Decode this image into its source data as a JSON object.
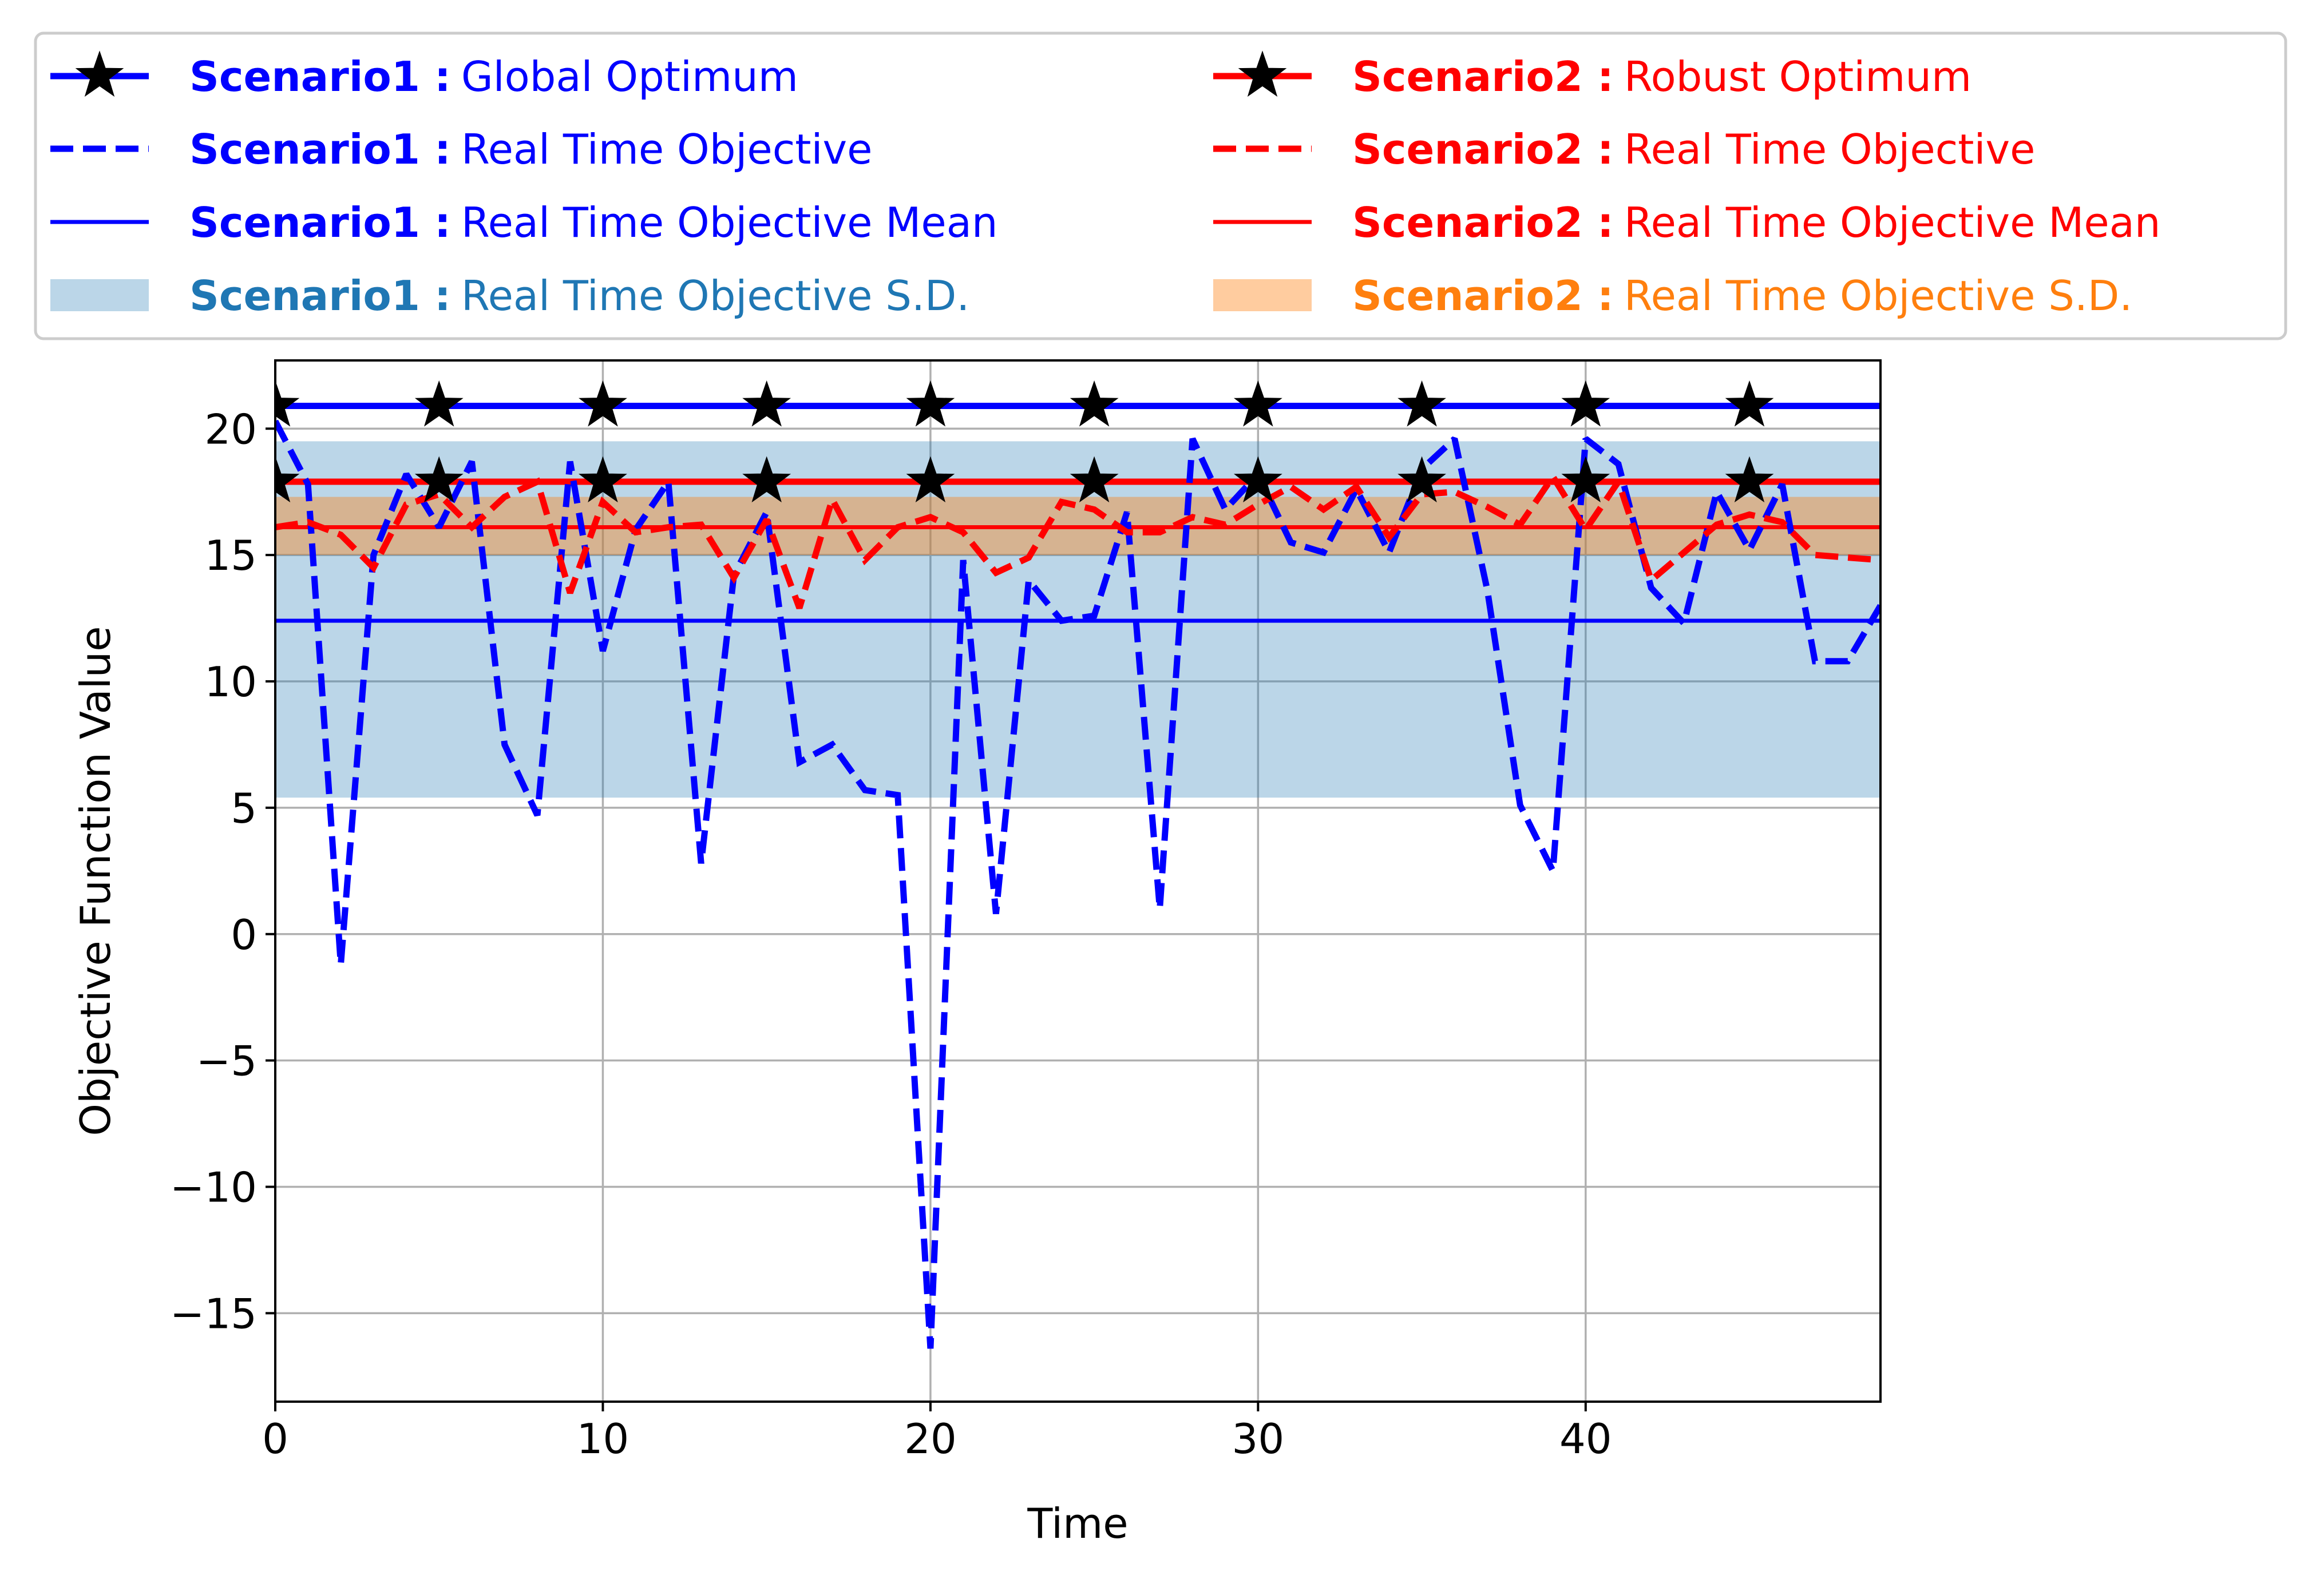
{
  "chart_data": {
    "type": "line",
    "title": "",
    "xlabel": "Time",
    "ylabel": "Objective Function Value",
    "xlim": [
      0,
      49
    ],
    "ylim": [
      -18.5,
      22.7
    ],
    "xticks": [
      0,
      10,
      20,
      30,
      40
    ],
    "yticks": [
      -15,
      -10,
      -5,
      0,
      5,
      10,
      15,
      20
    ],
    "xtick_labels": [
      "0",
      "10",
      "20",
      "30",
      "40"
    ],
    "ytick_labels": [
      "−15",
      "−10",
      "−5",
      "0",
      "5",
      "10",
      "15",
      "20"
    ],
    "grid": true,
    "legend_position": "top",
    "series": [
      {
        "key": "s1_global",
        "prefix": "Scenario1 :",
        "name": "Global Optimum",
        "color": "#0000ff",
        "style": "solid-star",
        "values": [
          20.9,
          20.9
        ],
        "x": [
          0,
          49
        ],
        "markers_x": [
          0,
          5,
          10,
          15,
          20,
          25,
          30,
          35,
          40,
          45
        ]
      },
      {
        "key": "s1_rt",
        "prefix": "Scenario1 :",
        "name": "Real Time Objective",
        "color": "#0000ff",
        "style": "dashed",
        "x": [
          0,
          1,
          2,
          3,
          4,
          5,
          6,
          7,
          8,
          9,
          10,
          11,
          12,
          13,
          14,
          15,
          16,
          17,
          18,
          19,
          20,
          21,
          22,
          23,
          24,
          25,
          26,
          27,
          28,
          29,
          30,
          31,
          32,
          33,
          34,
          35,
          36,
          37,
          38,
          39,
          40,
          41,
          42,
          43,
          44,
          45,
          46,
          47,
          48,
          49
        ],
        "values": [
          20.3,
          17.8,
          -1.2,
          15.0,
          18.2,
          16.1,
          18.7,
          7.5,
          4.7,
          18.7,
          11.2,
          16.0,
          17.9,
          2.8,
          14.2,
          16.7,
          6.8,
          7.5,
          5.7,
          5.5,
          -16.4,
          14.8,
          0.8,
          14.0,
          12.4,
          12.6,
          16.7,
          1.0,
          19.6,
          16.8,
          18.2,
          15.5,
          15.1,
          17.6,
          15.1,
          18.4,
          19.6,
          13.6,
          5.1,
          2.5,
          19.6,
          18.6,
          13.7,
          12.3,
          17.5,
          15.2,
          17.8,
          10.8,
          10.8,
          13.0
        ]
      },
      {
        "key": "s1_mean",
        "prefix": "Scenario1 :",
        "name": "Real Time Objective Mean",
        "color": "#0000ff",
        "style": "solid-thin",
        "values": [
          12.4,
          12.4
        ],
        "x": [
          0,
          49
        ]
      },
      {
        "key": "s1_sd",
        "prefix": "Scenario1 :",
        "name": "Real Time Objective S.D.",
        "color": "#1f77b4",
        "style": "band",
        "band": [
          5.4,
          19.5
        ]
      },
      {
        "key": "s2_robust",
        "prefix": "Scenario2 :",
        "name": "Robust Optimum",
        "color": "#ff0000",
        "style": "solid-star",
        "values": [
          17.9,
          17.9
        ],
        "x": [
          0,
          49
        ],
        "markers_x": [
          0,
          5,
          10,
          15,
          20,
          25,
          30,
          35,
          40,
          45
        ]
      },
      {
        "key": "s2_rt",
        "prefix": "Scenario2 :",
        "name": "Real Time Objective",
        "color": "#ff0000",
        "style": "dashed",
        "x": [
          0,
          1,
          2,
          3,
          4,
          5,
          6,
          7,
          8,
          9,
          10,
          11,
          12,
          13,
          14,
          15,
          16,
          17,
          18,
          19,
          20,
          21,
          22,
          23,
          24,
          25,
          26,
          27,
          28,
          29,
          30,
          31,
          32,
          33,
          34,
          35,
          36,
          37,
          38,
          39,
          40,
          41,
          42,
          43,
          44,
          45,
          46,
          47,
          48,
          49
        ],
        "values": [
          16.1,
          16.3,
          15.8,
          14.5,
          17.0,
          17.4,
          16.1,
          17.3,
          17.9,
          13.5,
          17.1,
          15.9,
          16.1,
          16.2,
          14.1,
          16.4,
          12.9,
          17.2,
          14.8,
          16.1,
          16.5,
          15.9,
          14.3,
          14.9,
          17.1,
          16.8,
          15.9,
          15.9,
          16.5,
          16.2,
          17.0,
          17.7,
          16.8,
          17.7,
          15.7,
          17.4,
          17.5,
          16.9,
          16.2,
          18.1,
          16.0,
          17.9,
          14.0,
          15.1,
          16.2,
          16.6,
          16.3,
          15.0,
          14.9,
          14.8
        ]
      },
      {
        "key": "s2_mean",
        "prefix": "Scenario2 :",
        "name": "Real Time Objective Mean",
        "color": "#ff0000",
        "style": "solid-thin",
        "values": [
          16.1,
          16.1
        ],
        "x": [
          0,
          49
        ]
      },
      {
        "key": "s2_sd",
        "prefix": "Scenario2 :",
        "name": "Real Time Objective S.D.",
        "color": "#ff7f0e",
        "style": "band",
        "band": [
          15.0,
          17.3
        ]
      }
    ]
  }
}
